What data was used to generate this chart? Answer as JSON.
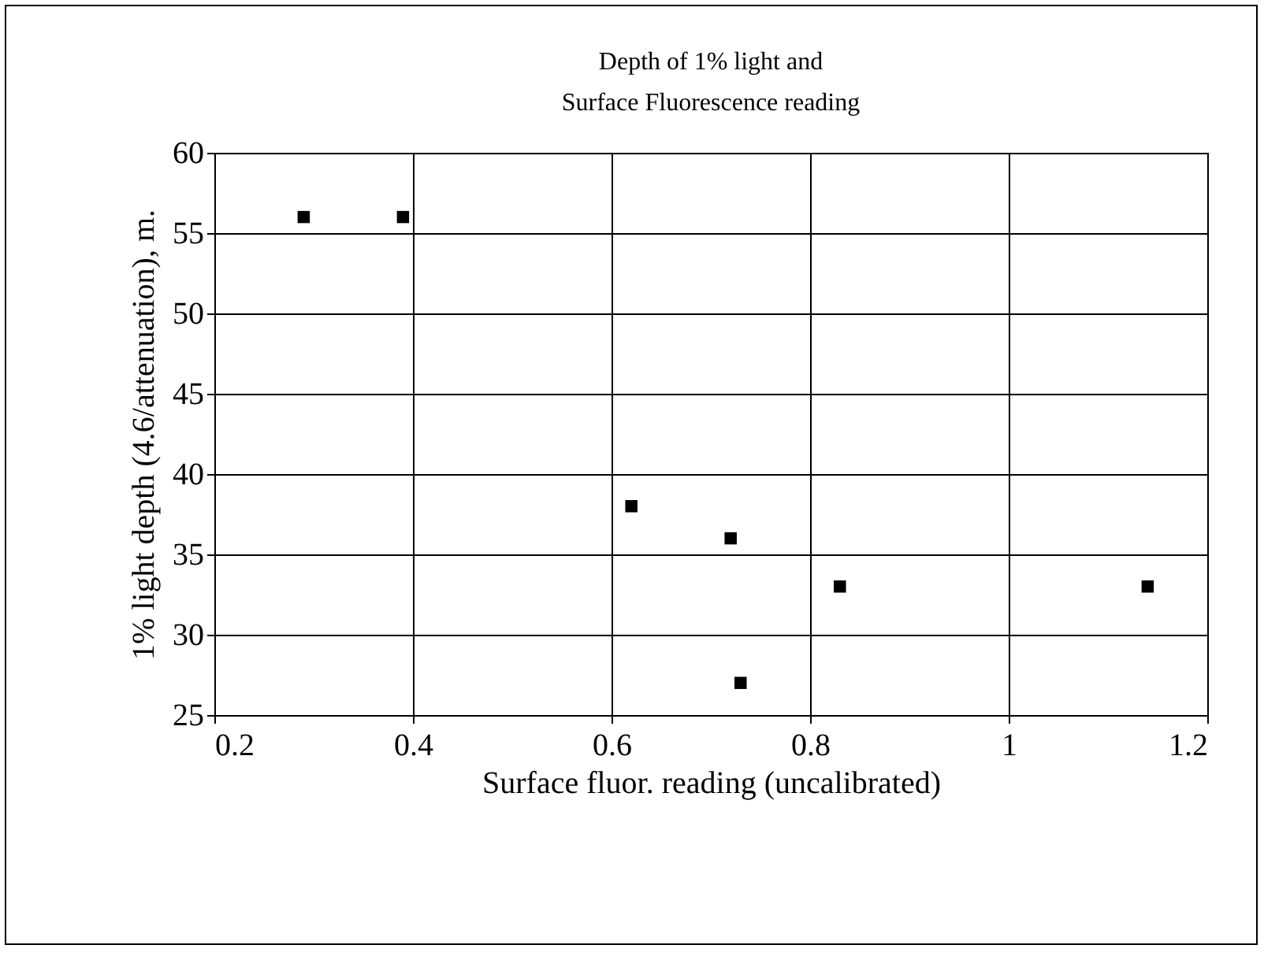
{
  "chart_data": {
    "type": "scatter",
    "title": "Depth of 1% light and\nSurface Fluorescence reading",
    "xlabel": "Surface fluor. reading (uncalibrated)",
    "ylabel": "1% light depth (4.6/attenuation), m.",
    "x": [
      0.29,
      0.39,
      0.62,
      0.72,
      0.73,
      0.83,
      1.14
    ],
    "series": [
      {
        "color": "#000000",
        "values": [
          56,
          56,
          38,
          36,
          27,
          33,
          33
        ]
      }
    ],
    "xlim": [
      0.2,
      1.2
    ],
    "xticks": [
      0.2,
      0.4,
      0.6,
      0.8,
      1,
      1.2
    ],
    "ylim": [
      25,
      60
    ],
    "yticks": [
      25,
      30,
      35,
      40,
      45,
      50,
      55,
      60
    ],
    "grid": true,
    "marker": "square",
    "legend": false
  }
}
